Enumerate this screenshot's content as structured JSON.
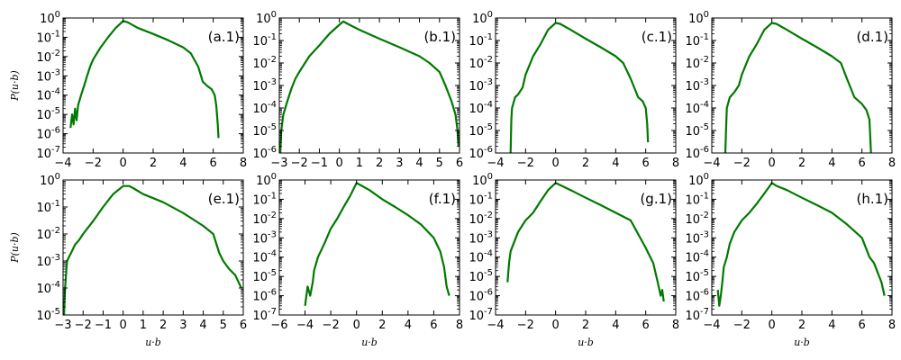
{
  "figure": {
    "ylabel": "P(u·b)",
    "xlabel": "u·b",
    "line_color": "#007a00"
  },
  "chart_data": [
    {
      "type": "line",
      "label": "(a.1)",
      "ylabel": "P(u·b)",
      "xlabel": "",
      "xlim": [
        -4,
        8
      ],
      "xticks": [
        -4,
        -2,
        0,
        2,
        4,
        6,
        8
      ],
      "ylog": true,
      "ylim_exp": [
        -7,
        0
      ],
      "yticks_exp": [
        -7,
        -6,
        -5,
        -4,
        -3,
        -2,
        -1,
        0
      ],
      "series": [
        {
          "x": [
            -3.5,
            -3.4,
            -3.3,
            -3.2,
            -3.1,
            -3.0,
            -2.8,
            -2.6,
            -2.4,
            -2.2,
            -2.0,
            -1.5,
            -1.0,
            -0.5,
            0.0,
            0.3,
            1.0,
            2.0,
            3.0,
            4.0,
            4.5,
            5.0,
            5.3,
            5.6,
            5.9,
            6.1,
            6.2,
            6.3,
            6.35
          ],
          "y": [
            2e-06,
            1e-05,
            3e-06,
            2e-05,
            5e-06,
            3e-05,
            0.0001,
            0.0003,
            0.001,
            0.003,
            0.007,
            0.03,
            0.1,
            0.3,
            0.7,
            0.6,
            0.3,
            0.15,
            0.07,
            0.03,
            0.015,
            0.003,
            0.0005,
            0.0003,
            0.0002,
            0.0001,
            3e-05,
            3e-06,
            6e-07
          ]
        }
      ]
    },
    {
      "type": "line",
      "label": "(b.1)",
      "ylabel": "",
      "xlabel": "",
      "xlim": [
        -3,
        6
      ],
      "xticks": [
        -3,
        -2,
        -1,
        0,
        1,
        2,
        3,
        4,
        5,
        6
      ],
      "ylog": true,
      "ylim_exp": [
        -6,
        0
      ],
      "yticks_exp": [
        -6,
        -5,
        -4,
        -3,
        -2,
        -1,
        0
      ],
      "series": [
        {
          "x": [
            -2.95,
            -2.9,
            -2.8,
            -2.6,
            -2.4,
            -2.2,
            -2.0,
            -1.5,
            -1.0,
            -0.5,
            0.0,
            0.2,
            0.5,
            1.0,
            2.0,
            3.0,
            4.0,
            4.5,
            5.0,
            5.3,
            5.6,
            5.8,
            5.9,
            5.95
          ],
          "y": [
            1e-06,
            1e-05,
            5e-05,
            0.0002,
            0.0007,
            0.002,
            0.004,
            0.02,
            0.06,
            0.2,
            0.5,
            0.7,
            0.5,
            0.3,
            0.12,
            0.05,
            0.02,
            0.01,
            0.004,
            0.001,
            0.0002,
            5e-05,
            1e-05,
            2e-06
          ]
        }
      ]
    },
    {
      "type": "line",
      "label": "(c.1)",
      "ylabel": "",
      "xlabel": "",
      "xlim": [
        -4,
        8
      ],
      "xticks": [
        -4,
        -2,
        0,
        2,
        4,
        6,
        8
      ],
      "ylog": true,
      "ylim_exp": [
        -6,
        0
      ],
      "yticks_exp": [
        -6,
        -5,
        -4,
        -3,
        -2,
        -1,
        0
      ],
      "series": [
        {
          "x": [
            -3.0,
            -2.95,
            -2.9,
            -2.7,
            -2.5,
            -2.2,
            -2.0,
            -1.5,
            -1.0,
            -0.5,
            0.0,
            0.3,
            1.0,
            2.0,
            3.0,
            4.0,
            4.5,
            5.0,
            5.5,
            5.8,
            6.0,
            6.1,
            6.15
          ],
          "y": [
            8e-07,
            3e-05,
            0.0001,
            0.0003,
            0.0004,
            0.0008,
            0.003,
            0.02,
            0.07,
            0.3,
            0.6,
            0.55,
            0.3,
            0.12,
            0.05,
            0.02,
            0.01,
            0.002,
            0.0003,
            0.0002,
            0.0001,
            2e-05,
            3e-06
          ]
        }
      ]
    },
    {
      "type": "line",
      "label": "(d.1)",
      "ylabel": "",
      "xlabel": "",
      "xlim": [
        -4,
        8
      ],
      "xticks": [
        -4,
        -2,
        0,
        2,
        4,
        6,
        8
      ],
      "ylog": true,
      "ylim_exp": [
        -6,
        0
      ],
      "yticks_exp": [
        -6,
        -5,
        -4,
        -3,
        -2,
        -1,
        0
      ],
      "series": [
        {
          "x": [
            -3.1,
            -3.05,
            -3.0,
            -2.8,
            -2.5,
            -2.2,
            -2.0,
            -1.5,
            -1.0,
            -0.5,
            0.0,
            0.3,
            1.0,
            2.0,
            3.0,
            4.0,
            4.6,
            5.0,
            5.5,
            6.0,
            6.3,
            6.5,
            6.6
          ],
          "y": [
            1e-06,
            1e-05,
            0.0001,
            0.0003,
            0.0005,
            0.001,
            0.003,
            0.02,
            0.07,
            0.3,
            0.6,
            0.55,
            0.3,
            0.12,
            0.05,
            0.02,
            0.01,
            0.002,
            0.0003,
            0.00015,
            8e-05,
            3e-05,
            1e-06
          ]
        }
      ]
    },
    {
      "type": "line",
      "label": "(e.1)",
      "ylabel": "P(u·b)",
      "xlabel": "u·b",
      "xlim": [
        -3,
        6
      ],
      "xticks": [
        -3,
        -2,
        -1,
        0,
        1,
        2,
        3,
        4,
        5,
        6
      ],
      "ylog": true,
      "ylim_exp": [
        -5,
        0
      ],
      "yticks_exp": [
        -5,
        -4,
        -3,
        -2,
        -1,
        0
      ],
      "series": [
        {
          "x": [
            -2.95,
            -2.9,
            -2.8,
            -2.6,
            -2.4,
            -2.2,
            -2.0,
            -1.5,
            -1.0,
            -0.5,
            0.0,
            0.3,
            0.5,
            1.0,
            2.0,
            3.0,
            4.0,
            4.5,
            4.8,
            5.0,
            5.3,
            5.6,
            5.9
          ],
          "y": [
            1e-05,
            0.0001,
            0.001,
            0.002,
            0.004,
            0.006,
            0.01,
            0.03,
            0.1,
            0.3,
            0.6,
            0.6,
            0.5,
            0.3,
            0.15,
            0.06,
            0.02,
            0.01,
            0.002,
            0.001,
            0.0005,
            0.0003,
            0.0001
          ]
        }
      ]
    },
    {
      "type": "line",
      "label": "(f.1)",
      "ylabel": "",
      "xlabel": "u·b",
      "xlim": [
        -6,
        8
      ],
      "xticks": [
        -6,
        -4,
        -2,
        0,
        2,
        4,
        6,
        8
      ],
      "ylog": true,
      "ylim_exp": [
        -7,
        0
      ],
      "yticks_exp": [
        -7,
        -6,
        -5,
        -4,
        -3,
        -2,
        -1,
        0
      ],
      "series": [
        {
          "x": [
            -4.0,
            -3.8,
            -3.6,
            -3.4,
            -3.3,
            -3.0,
            -2.5,
            -2.0,
            -1.5,
            -1.0,
            -0.5,
            0.0,
            0.3,
            1.0,
            2.0,
            3.0,
            4.0,
            5.0,
            6.0,
            6.5,
            6.8,
            7.0,
            7.2
          ],
          "y": [
            3e-07,
            3e-06,
            1e-06,
            5e-06,
            2e-05,
            0.0001,
            0.0005,
            0.003,
            0.01,
            0.04,
            0.15,
            0.7,
            0.55,
            0.3,
            0.1,
            0.04,
            0.015,
            0.005,
            0.001,
            0.0002,
            3e-05,
            3e-06,
            1e-06
          ]
        }
      ]
    },
    {
      "type": "line",
      "label": "(g.1)",
      "ylabel": "",
      "xlabel": "u·b",
      "xlim": [
        -4,
        8
      ],
      "xticks": [
        -4,
        -2,
        0,
        2,
        4,
        6,
        8
      ],
      "ylog": true,
      "ylim_exp": [
        -7,
        0
      ],
      "yticks_exp": [
        -7,
        -6,
        -5,
        -4,
        -3,
        -2,
        -1,
        0
      ],
      "series": [
        {
          "x": [
            -3.2,
            -3.1,
            -3.0,
            -2.8,
            -2.5,
            -2.0,
            -1.5,
            -1.0,
            -0.5,
            0.0,
            0.3,
            1.0,
            2.0,
            3.0,
            4.0,
            5.0,
            6.0,
            6.5,
            6.8,
            7.0,
            7.1,
            7.2
          ],
          "y": [
            5e-06,
            5e-05,
            0.0002,
            0.0005,
            0.002,
            0.008,
            0.02,
            0.08,
            0.3,
            0.7,
            0.55,
            0.3,
            0.12,
            0.05,
            0.02,
            0.008,
            0.0003,
            5e-05,
            5e-06,
            1e-06,
            2e-06,
            5e-07
          ]
        }
      ]
    },
    {
      "type": "line",
      "label": "(h.1)",
      "ylabel": "",
      "xlabel": "u·b",
      "xlim": [
        -4,
        8
      ],
      "xticks": [
        -4,
        -2,
        0,
        2,
        4,
        6,
        8
      ],
      "ylog": true,
      "ylim_exp": [
        -7,
        0
      ],
      "yticks_exp": [
        -7,
        -6,
        -5,
        -4,
        -3,
        -2,
        -1,
        0
      ],
      "series": [
        {
          "x": [
            -3.6,
            -3.5,
            -3.4,
            -3.3,
            -3.2,
            -3.0,
            -2.8,
            -2.5,
            -2.0,
            -1.5,
            -1.0,
            -0.5,
            0.0,
            0.3,
            1.0,
            2.0,
            3.0,
            4.0,
            5.0,
            6.0,
            6.5,
            6.8,
            7.0,
            7.3,
            7.5
          ],
          "y": [
            2e-06,
            3e-07,
            1e-06,
            5e-06,
            3e-05,
            0.0001,
            0.0005,
            0.002,
            0.008,
            0.02,
            0.06,
            0.2,
            0.7,
            0.5,
            0.3,
            0.12,
            0.05,
            0.02,
            0.005,
            0.001,
            0.0001,
            5e-05,
            2e-05,
            5e-06,
            1e-06
          ]
        }
      ]
    }
  ]
}
